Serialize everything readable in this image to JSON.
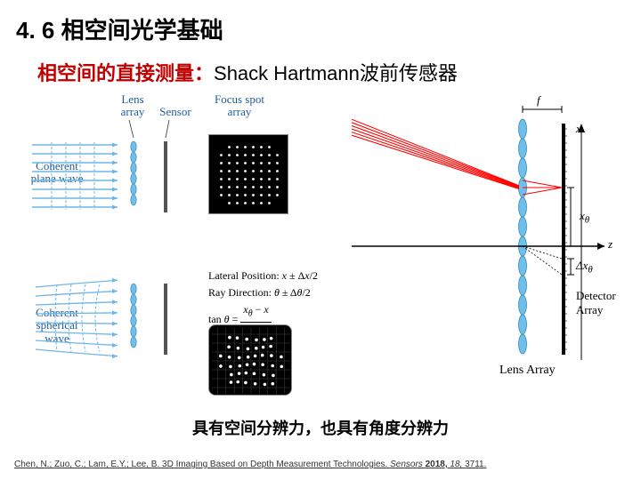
{
  "section_title": "4. 6 相空间光学基础",
  "subtitle": {
    "bold": "相空间的直接测量：",
    "rest": "Shack Hartmann波前传感器"
  },
  "left": {
    "labels": {
      "lens_array": "Lens array",
      "sensor": "Sensor",
      "focus_spot": "Focus spot array",
      "coherent_plane": "Coherent plane wave",
      "coherent_sph": "Coherent spherical wave"
    },
    "plane": {
      "wave_color": "#6fb6e6",
      "lens_color": "#6ec0e8",
      "sensor_color": "#555555",
      "y_lines": [
        58,
        68,
        78,
        88,
        98,
        108,
        118,
        128
      ],
      "lens_centers_y": [
        60,
        72,
        84,
        96,
        108,
        120
      ],
      "spot_bg": "#000000",
      "spot_dot": "#ffffff"
    },
    "sph": {
      "wave_color": "#6fb6e6",
      "lens_centers_y": [
        220,
        232,
        244,
        256,
        268,
        280
      ]
    },
    "math": {
      "line1": "Lateral Position: x ± Δx/2",
      "line2": "Ray Direction: θ ± Δθ/2",
      "line3": "tan θ = (xθ − x) / f"
    }
  },
  "right": {
    "f_label": "f",
    "x_theta": "xθ",
    "delta_x_theta": "Δxθ",
    "z_label": "z",
    "x_label": "x",
    "lens_array_label": "Lens Array",
    "detector_label": "Detector Array",
    "ray_color": "#ff0000",
    "lens_color": "#6ec0e8",
    "axis_color": "#000000",
    "lens_centers_y": [
      36,
      58,
      80,
      102,
      124,
      146,
      168,
      190,
      212,
      234,
      256,
      278
    ]
  },
  "bottom_caption": "具有空间分辨力，也具有角度分辨力",
  "citation": {
    "authors": "Chen, N.; Zuo, C.; Lam, E.Y.; Lee, B. ",
    "title": "3D Imaging Based on Depth Measurement Technologies. ",
    "journal": "Sensors ",
    "year_vol": "2018, ",
    "vol": "18, ",
    "pages": "3711."
  }
}
